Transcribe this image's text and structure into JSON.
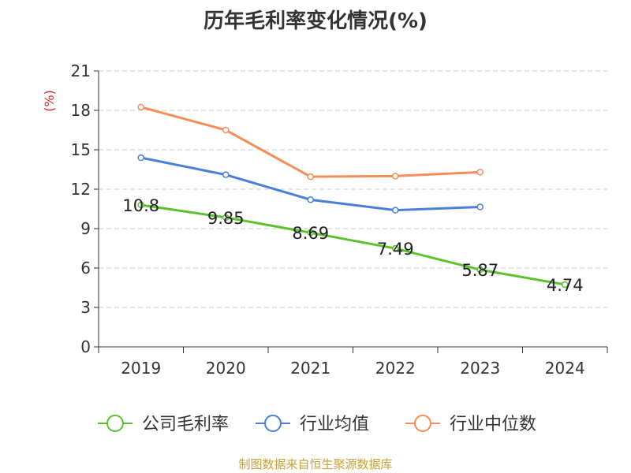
{
  "chart_data": {
    "type": "line",
    "title": "历年毛利率变化情况(%)",
    "ylabel": "(%)",
    "categories": [
      "2019",
      "2020",
      "2021",
      "2022",
      "2023",
      "2024"
    ],
    "ylim": [
      0,
      21
    ],
    "yticks": [
      0,
      3,
      6,
      9,
      12,
      15,
      18,
      21
    ],
    "grid": true,
    "legend_position": "bottom",
    "series": [
      {
        "name": "公司毛利率",
        "color": "#5cc12c",
        "values": [
          10.8,
          9.85,
          8.69,
          7.49,
          5.87,
          4.74
        ],
        "labels": [
          "10.8",
          "9.85",
          "8.69",
          "7.49",
          "5.87",
          "4.74"
        ]
      },
      {
        "name": "行业均值",
        "color": "#4a7fd9",
        "values": [
          14.4,
          13.1,
          11.2,
          10.4,
          10.65,
          null
        ]
      },
      {
        "name": "行业中位数",
        "color": "#f58d57",
        "values": [
          18.25,
          16.5,
          12.95,
          13.0,
          13.3,
          null
        ]
      }
    ]
  },
  "footer": {
    "source": "制图数据来自恒生聚源数据库"
  },
  "colors": {
    "title": "#333333",
    "axis": "#333333",
    "grid": "#cccccc",
    "ylabel": "#e02020",
    "source": "#c8a238"
  }
}
